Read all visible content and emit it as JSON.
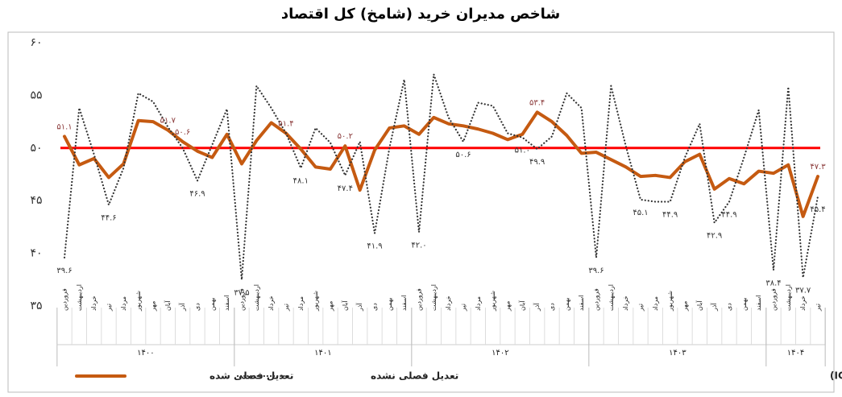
{
  "chart_data": {
    "type": "line",
    "title": "شاخص مدیران خرید (شامخ) کل اقتصاد",
    "source": "منبع: اتاق بازرگانی، صنایع، معادن و کشاورزی ایران (ICCIMA)",
    "categories": [
      "فروردین",
      "اردیبهشت",
      "خرداد",
      "تیر",
      "مرداد",
      "شهریور",
      "مهر",
      "آبان",
      "آذر",
      "دی",
      "بهمن",
      "اسفند",
      "فروردین",
      "اردیبهشت",
      "خرداد",
      "تیر",
      "مرداد",
      "شهریور",
      "مهر",
      "آبان",
      "آذر",
      "دی",
      "بهمن",
      "اسفند",
      "فروردین",
      "اردیبهشت",
      "خرداد",
      "تیر",
      "مرداد",
      "شهریور",
      "مهر",
      "آبان",
      "آذر",
      "دی",
      "بهمن",
      "اسفند",
      "فروردین",
      "اردیبهشت",
      "خرداد",
      "تیر",
      "مرداد",
      "شهریور",
      "مهر",
      "آبان",
      "آذر",
      "دی",
      "بهمن",
      "اسفند",
      "فروردین",
      "اردیبهشت",
      "خرداد",
      "تیر"
    ],
    "x_groups": [
      "۱۴۰۰",
      "۱۴۰۱",
      "۱۴۰۲",
      "۱۴۰۳",
      "۱۴۰۴"
    ],
    "series": [
      {
        "name": "تعدیل فصلی شده",
        "color": "#c55a11",
        "style": "solid",
        "values": [
          51.1,
          48.4,
          49.0,
          47.2,
          48.5,
          52.6,
          52.5,
          51.7,
          50.6,
          49.7,
          49.1,
          51.3,
          48.5,
          50.7,
          52.4,
          51.4,
          49.9,
          48.2,
          48.0,
          50.2,
          46.0,
          49.8,
          51.9,
          52.1,
          51.3,
          52.9,
          52.3,
          52.1,
          51.8,
          51.4,
          50.8,
          51.3,
          53.4,
          52.5,
          51.2,
          49.5,
          49.6,
          48.9,
          48.2,
          47.3,
          47.4,
          47.2,
          48.7,
          49.4,
          46.1,
          47.1,
          46.6,
          47.8,
          47.6,
          48.4,
          43.5,
          47.3
        ],
        "value_labels": [
          "۵۱.۱",
          null,
          null,
          null,
          null,
          null,
          null,
          "۵۱.۷",
          "۵۰.۶",
          null,
          null,
          null,
          null,
          null,
          null,
          "۵۱.۴",
          null,
          null,
          null,
          "۵۰.۲",
          null,
          null,
          null,
          null,
          null,
          null,
          null,
          null,
          null,
          null,
          null,
          null,
          "۵۳.۴",
          null,
          null,
          null,
          null,
          null,
          null,
          null,
          null,
          null,
          null,
          null,
          null,
          null,
          null,
          null,
          null,
          null,
          null,
          "۴۷.۳"
        ]
      },
      {
        "name": "تعدیل فصلی نشده",
        "color": "#333333",
        "style": "dotted",
        "values": [
          39.6,
          53.8,
          49.4,
          44.6,
          48.1,
          55.2,
          54.4,
          52.0,
          50.0,
          46.9,
          50.3,
          53.7,
          37.5,
          55.9,
          53.8,
          51.4,
          48.1,
          51.9,
          50.5,
          47.4,
          50.6,
          41.9,
          50.0,
          56.5,
          42.0,
          57.0,
          52.9,
          50.6,
          54.3,
          54.0,
          51.4,
          51.0,
          49.9,
          51.1,
          55.2,
          53.8,
          39.6,
          55.9,
          50.2,
          45.1,
          44.9,
          44.9,
          49.1,
          52.3,
          42.9,
          44.9,
          49.1,
          53.6,
          38.4,
          55.8,
          37.7,
          45.4
        ],
        "value_labels": [
          "۳۹.۶",
          null,
          null,
          "۴۴.۶",
          null,
          null,
          null,
          null,
          null,
          "۴۶.۹",
          null,
          null,
          "۳۷.۵",
          null,
          null,
          null,
          "۴۸.۱",
          null,
          null,
          "۴۷.۴",
          null,
          "۴۱.۹",
          null,
          null,
          "۴۲.۰",
          null,
          null,
          "۵۰.۶",
          null,
          null,
          null,
          "۵۱.۰",
          "۴۹.۹",
          null,
          null,
          null,
          "۳۹.۶",
          null,
          null,
          "۴۵.۱",
          null,
          "۴۴.۹",
          null,
          null,
          "۴۲.۹",
          "۴۴.۹",
          null,
          null,
          "۳۸.۴",
          null,
          "۳۷.۷",
          "۴۵.۴"
        ]
      }
    ],
    "reference_line": {
      "value": 50,
      "color": "#ff0000"
    },
    "ylim": [
      35,
      60
    ],
    "yticks": [
      {
        "value": 35,
        "label": "۳۵"
      },
      {
        "value": 40,
        "label": "۴۰"
      },
      {
        "value": 45,
        "label": "۴۵"
      },
      {
        "value": 50,
        "label": "۵۰"
      },
      {
        "value": 55,
        "label": "۵۵"
      },
      {
        "value": 60,
        "label": "۶۰"
      }
    ],
    "grid": false,
    "legend": "bottom-left"
  }
}
